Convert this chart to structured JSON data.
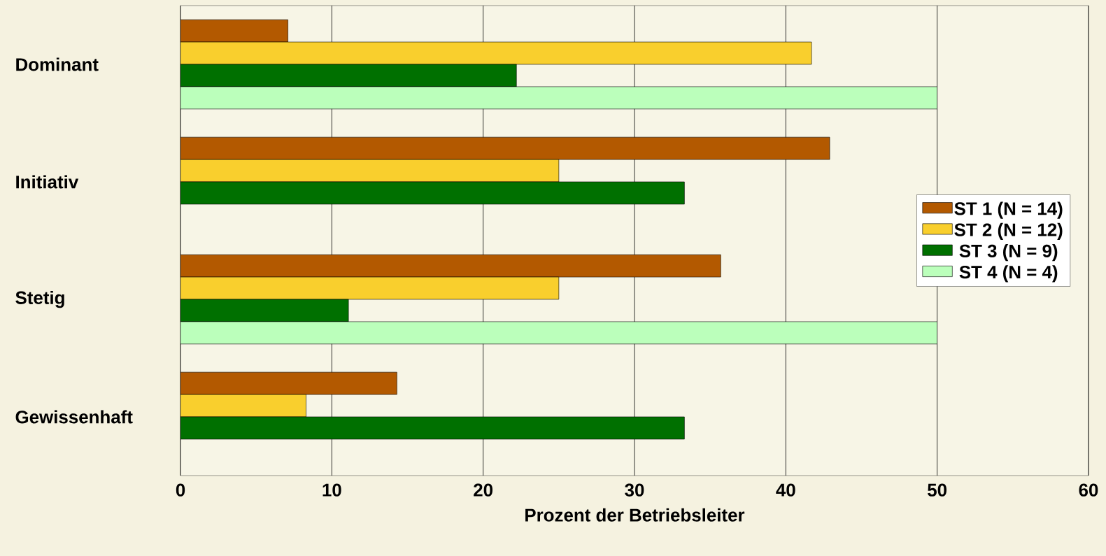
{
  "chart_data": {
    "type": "bar",
    "orientation": "horizontal",
    "xlabel": "Prozent der Betriebsleiter",
    "categories": [
      "Dominant",
      "Initiativ",
      "Stetig",
      "Gewissenhaft"
    ],
    "series": [
      {
        "name": "ST 1 (N = 14)",
        "color": "#b35900",
        "values": [
          7.1,
          42.9,
          35.7,
          14.3
        ]
      },
      {
        "name": "ST 2 (N = 12)",
        "color": "#f9cf2d",
        "values": [
          41.7,
          25,
          25,
          8.3
        ]
      },
      {
        "name": "ST 3 (N = 9)",
        "color": "#007000",
        "values": [
          22.2,
          33.3,
          11.1,
          33.3
        ]
      },
      {
        "name": "ST 4 (N = 4)",
        "color": "#bbffbb",
        "values": [
          50,
          null,
          50,
          null
        ]
      }
    ],
    "xlim": [
      0,
      60
    ],
    "xticks": [
      0,
      10,
      20,
      30,
      40,
      50,
      60
    ],
    "grid": "x",
    "legend": "right"
  }
}
